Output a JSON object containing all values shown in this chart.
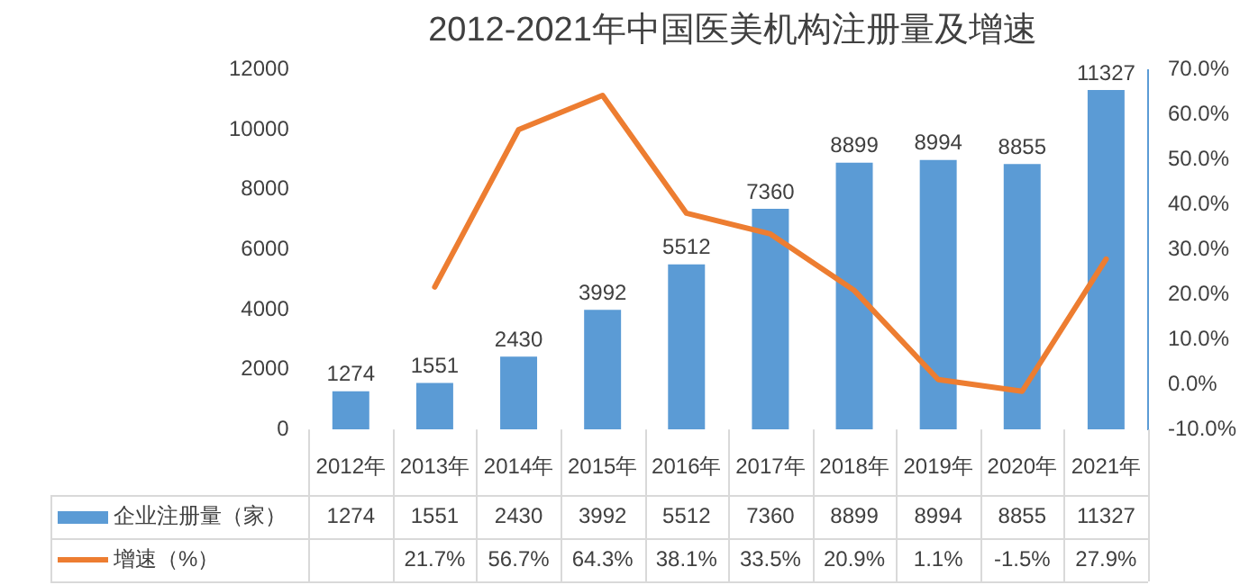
{
  "chart_data": {
    "type": "bar",
    "title": "2012-2021年中国医美机构注册量及增速",
    "categories": [
      "2012年",
      "2013年",
      "2014年",
      "2015年",
      "2016年",
      "2017年",
      "2018年",
      "2019年",
      "2020年",
      "2021年"
    ],
    "series": [
      {
        "name": "企业注册量（家）",
        "color": "#5b9bd5",
        "values": [
          1274,
          1551,
          2430,
          3992,
          5512,
          7360,
          8899,
          8994,
          8855,
          11327
        ],
        "value_labels": [
          "1274",
          "1551",
          "2430",
          "3992",
          "5512",
          "7360",
          "8899",
          "8994",
          "8855",
          "11327"
        ]
      },
      {
        "name": "增速（%）",
        "type": "line",
        "axis": "y2",
        "color": "#ed7d31",
        "values": [
          null,
          21.7,
          56.7,
          64.3,
          38.1,
          33.5,
          20.9,
          1.1,
          -1.5,
          27.9
        ],
        "value_labels": [
          null,
          "21.7%",
          "56.7%",
          "64.3%",
          "38.1%",
          "33.5%",
          "20.9%",
          "1.1%",
          "-1.5%",
          "27.9%"
        ]
      }
    ],
    "ylim": [
      0,
      12000
    ],
    "yticks": [
      0,
      2000,
      4000,
      6000,
      8000,
      10000,
      12000
    ],
    "y2lim": [
      -10,
      70
    ],
    "y2ticks": [
      {
        "value": -10,
        "label": "-10.0%"
      },
      {
        "value": 0,
        "label": "0.0%"
      },
      {
        "value": 10,
        "label": "10.0%"
      },
      {
        "value": 20,
        "label": "20.0%"
      },
      {
        "value": 30,
        "label": "30.0%"
      },
      {
        "value": 40,
        "label": "40.0%"
      },
      {
        "value": 50,
        "label": "50.0%"
      },
      {
        "value": 60,
        "label": "60.0%"
      },
      {
        "value": 70,
        "label": "70.0%"
      }
    ],
    "legend": "bottom",
    "marker": "none"
  }
}
